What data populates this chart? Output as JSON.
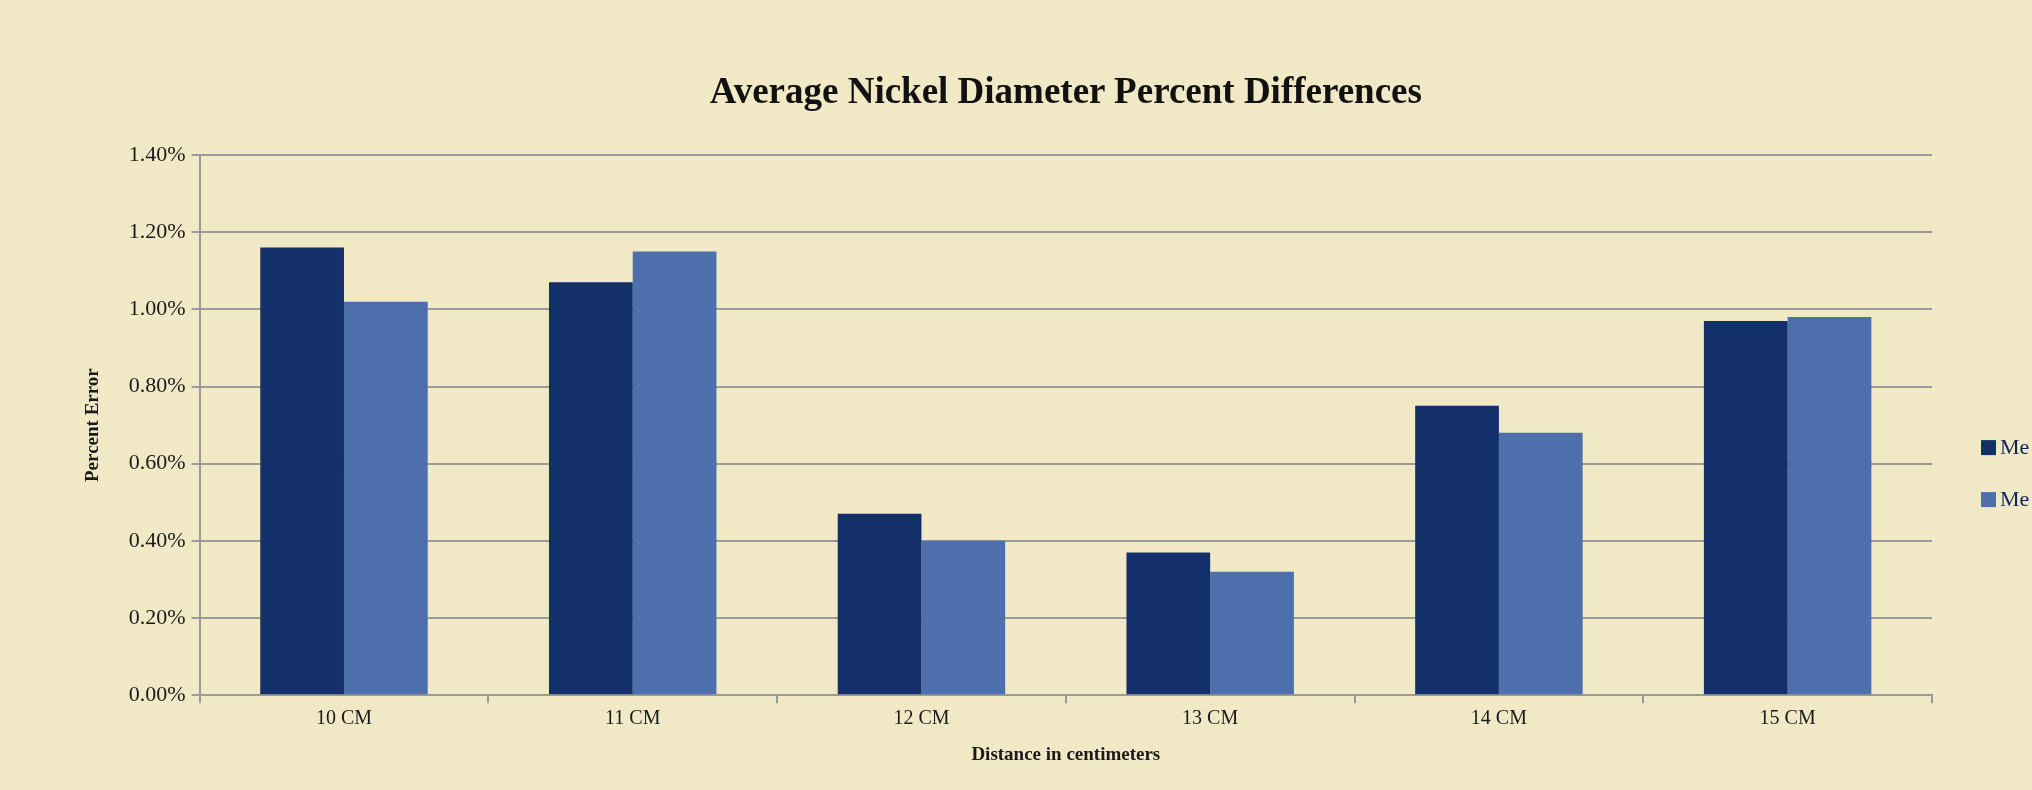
{
  "chart_data": {
    "type": "bar",
    "title": "Average Nickel Diameter Percent Differences",
    "xlabel": "Distance in centimeters",
    "ylabel": "Percent Error",
    "categories": [
      "10 CM",
      "11 CM",
      "12 CM",
      "13 CM",
      "14 CM",
      "15 CM"
    ],
    "series": [
      {
        "name": "Me",
        "color": "#14306a",
        "values": [
          1.16,
          1.07,
          0.47,
          0.37,
          0.75,
          0.97
        ]
      },
      {
        "name": "Me",
        "color": "#4d70ad",
        "values": [
          1.02,
          1.15,
          0.4,
          0.32,
          0.68,
          0.98
        ]
      }
    ],
    "ylim": [
      0,
      1.4
    ],
    "yticks": [
      {
        "value": 0,
        "label": "0.00%"
      },
      {
        "value": 0.2,
        "label": "0.20%"
      },
      {
        "value": 0.4,
        "label": "0.40%"
      },
      {
        "value": 0.6,
        "label": "0.60%"
      },
      {
        "value": 0.8,
        "label": "0.80%"
      },
      {
        "value": 1.0,
        "label": "1.00%"
      },
      {
        "value": 1.2,
        "label": "1.20%"
      },
      {
        "value": 1.4,
        "label": "1.40%"
      }
    ],
    "grid": "y",
    "legend": "right"
  }
}
